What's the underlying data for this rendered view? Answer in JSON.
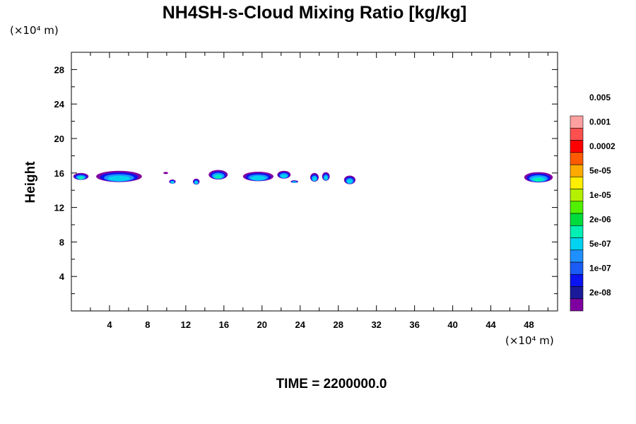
{
  "chart_data": {
    "type": "heatmap",
    "title": "NH4SH-s-Cloud Mixing Ratio [kg/kg]",
    "xlabel": "",
    "ylabel": "Height",
    "x_unit": "(×10⁴ m)",
    "y_unit": "(×10⁴ m)",
    "footer": "TIME = 2200000.0",
    "xlim": [
      0,
      51
    ],
    "ylim": [
      0,
      30
    ],
    "xticks": [
      4,
      8,
      12,
      16,
      20,
      24,
      28,
      32,
      36,
      40,
      44,
      48
    ],
    "yticks": [
      4,
      8,
      12,
      16,
      20,
      24,
      28
    ],
    "grid": false,
    "colorbar": {
      "placement": "right",
      "colors": [
        "#7f00a0",
        "#1a1a9a",
        "#0a14f0",
        "#1a5cf5",
        "#1e90ff",
        "#00d2f0",
        "#00f0b4",
        "#00dc3c",
        "#50f000",
        "#b4f000",
        "#ffee00",
        "#ffaa00",
        "#ff5a00",
        "#ff0000",
        "#ff5050",
        "#ffa0a0"
      ],
      "tick_labels": [
        "2e-08",
        "1e-07",
        "5e-07",
        "2e-06",
        "1e-05",
        "5e-05",
        "0.0002",
        "0.001",
        "0.005"
      ]
    },
    "features": [
      {
        "x_center": 1.0,
        "y_center": 15.6,
        "x_extent": 1.6,
        "y_extent": 0.8,
        "max_value": "2e-06"
      },
      {
        "x_center": 5.0,
        "y_center": 15.6,
        "x_extent": 4.8,
        "y_extent": 1.3,
        "max_value": "5e-07"
      },
      {
        "x_center": 9.9,
        "y_center": 16.0,
        "x_extent": 0.5,
        "y_extent": 0.2,
        "max_value": "2e-08"
      },
      {
        "x_center": 10.6,
        "y_center": 15.0,
        "x_extent": 0.7,
        "y_extent": 0.5,
        "max_value": "5e-07"
      },
      {
        "x_center": 13.1,
        "y_center": 15.0,
        "x_extent": 0.7,
        "y_extent": 0.7,
        "max_value": "5e-07"
      },
      {
        "x_center": 15.4,
        "y_center": 15.8,
        "x_extent": 2.0,
        "y_extent": 1.1,
        "max_value": "2e-06"
      },
      {
        "x_center": 19.6,
        "y_center": 15.6,
        "x_extent": 3.2,
        "y_extent": 1.1,
        "max_value": "5e-07"
      },
      {
        "x_center": 22.3,
        "y_center": 15.8,
        "x_extent": 1.4,
        "y_extent": 0.9,
        "max_value": "5e-07"
      },
      {
        "x_center": 23.4,
        "y_center": 15.0,
        "x_extent": 0.8,
        "y_extent": 0.3,
        "max_value": "5e-07"
      },
      {
        "x_center": 25.5,
        "y_center": 15.5,
        "x_extent": 0.9,
        "y_extent": 1.0,
        "max_value": "5e-07"
      },
      {
        "x_center": 26.7,
        "y_center": 15.6,
        "x_extent": 0.8,
        "y_extent": 1.0,
        "max_value": "5e-07"
      },
      {
        "x_center": 29.2,
        "y_center": 15.2,
        "x_extent": 1.2,
        "y_extent": 1.0,
        "max_value": "5e-07"
      },
      {
        "x_center": 49.0,
        "y_center": 15.5,
        "x_extent": 3.0,
        "y_extent": 1.2,
        "max_value": "2e-06"
      }
    ]
  }
}
